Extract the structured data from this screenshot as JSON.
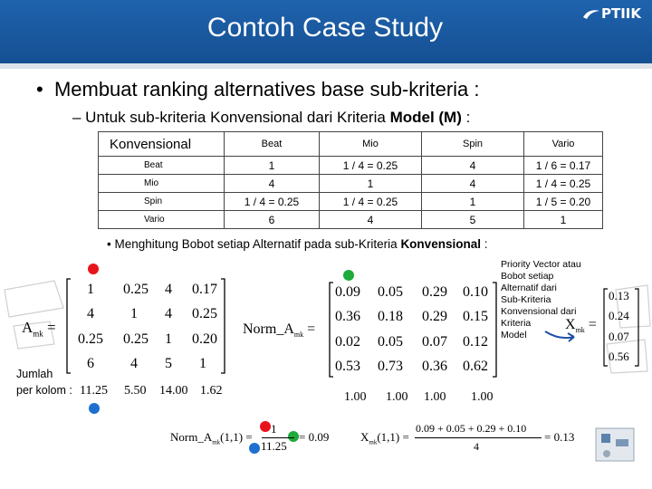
{
  "slide": {
    "title": "Contoh Case Study",
    "logo_text": "PTIIK",
    "bullet1": "Membuat ranking alternatives base sub-kriteria :",
    "bullet2_prefix": "– Untuk sub-kriteria Konvensional dari Kriteria ",
    "bullet2_bold": "Model (M)",
    "bullet2_suffix": " :",
    "bullet3_prefix": "Menghitung Bobot setiap Alternatif pada sub-Kriteria ",
    "bullet3_bold": "Konvensional",
    "bullet3_suffix": " :"
  },
  "pairwise_table": {
    "corner": "Konvensional",
    "columns": [
      "Beat",
      "Mio",
      "Spin",
      "Vario"
    ],
    "rows": [
      {
        "label": "Beat",
        "cells": [
          "1",
          "1 / 4 = 0.25",
          "4",
          "1 / 6 = 0.17"
        ]
      },
      {
        "label": "Mio",
        "cells": [
          "4",
          "1",
          "4",
          "1 / 4 = 0.25"
        ]
      },
      {
        "label": "Spin",
        "cells": [
          "1 / 4 = 0.25",
          "1 / 4 = 0.25",
          "1",
          "1 / 5 = 0.20"
        ]
      },
      {
        "label": "Vario",
        "cells": [
          "6",
          "4",
          "5",
          "1"
        ]
      }
    ]
  },
  "matrix_a": {
    "label": "A",
    "subscript": "mk",
    "equals": "=",
    "rows": [
      [
        "1",
        "0.25",
        "4",
        "0.17"
      ],
      [
        "4",
        "1",
        "4",
        "0.25"
      ],
      [
        "0.25",
        "0.25",
        "1",
        "0.20"
      ],
      [
        "6",
        "4",
        "5",
        "1"
      ]
    ],
    "jumlah_label": "Jumlah",
    "per_kolom_label": "per kolom :",
    "col_sums": [
      "11.25",
      "5.50",
      "14.00",
      "1.62"
    ]
  },
  "matrix_norm": {
    "label": "Norm_A",
    "subscript": "mk",
    "equals": "=",
    "rows": [
      [
        "0.09",
        "0.05",
        "0.29",
        "0.10"
      ],
      [
        "0.36",
        "0.18",
        "0.29",
        "0.15"
      ],
      [
        "0.02",
        "0.05",
        "0.07",
        "0.12"
      ],
      [
        "0.53",
        "0.73",
        "0.36",
        "0.62"
      ]
    ],
    "col_sums": [
      "1.00",
      "1.00",
      "1.00",
      "1.00"
    ]
  },
  "priority": {
    "note_lines": [
      "Priority Vector  atau",
      "Bobot setiap",
      "Alternatif dari",
      "Sub-Kriteria",
      "Konvensional dari",
      "Kriteria",
      "Model"
    ],
    "label": "X",
    "subscript": "mk",
    "equals": "=",
    "values": [
      "0.13",
      "0.24",
      "0.07",
      "0.56"
    ]
  },
  "formula1": {
    "lhs": "Norm_A",
    "lhs_sub": "mk",
    "lhs_idx": "(1,1)",
    "equals": "=",
    "numerator": "1",
    "denominator": "11.25",
    "result": "= 0.09"
  },
  "formula2": {
    "lhs": "X",
    "lhs_sub": "mk",
    "lhs_idx": "(1,1)",
    "equals": "=",
    "numerator": "0.09 + 0.05 + 0.29 + 0.10",
    "denominator": "4",
    "result": "= 0.13"
  },
  "colors": {
    "header": "#1a5aa0",
    "dot_red": "#e8141b",
    "dot_green": "#1faa3c",
    "dot_blue": "#1f6fd0",
    "arrow": "#1f4fa8"
  }
}
